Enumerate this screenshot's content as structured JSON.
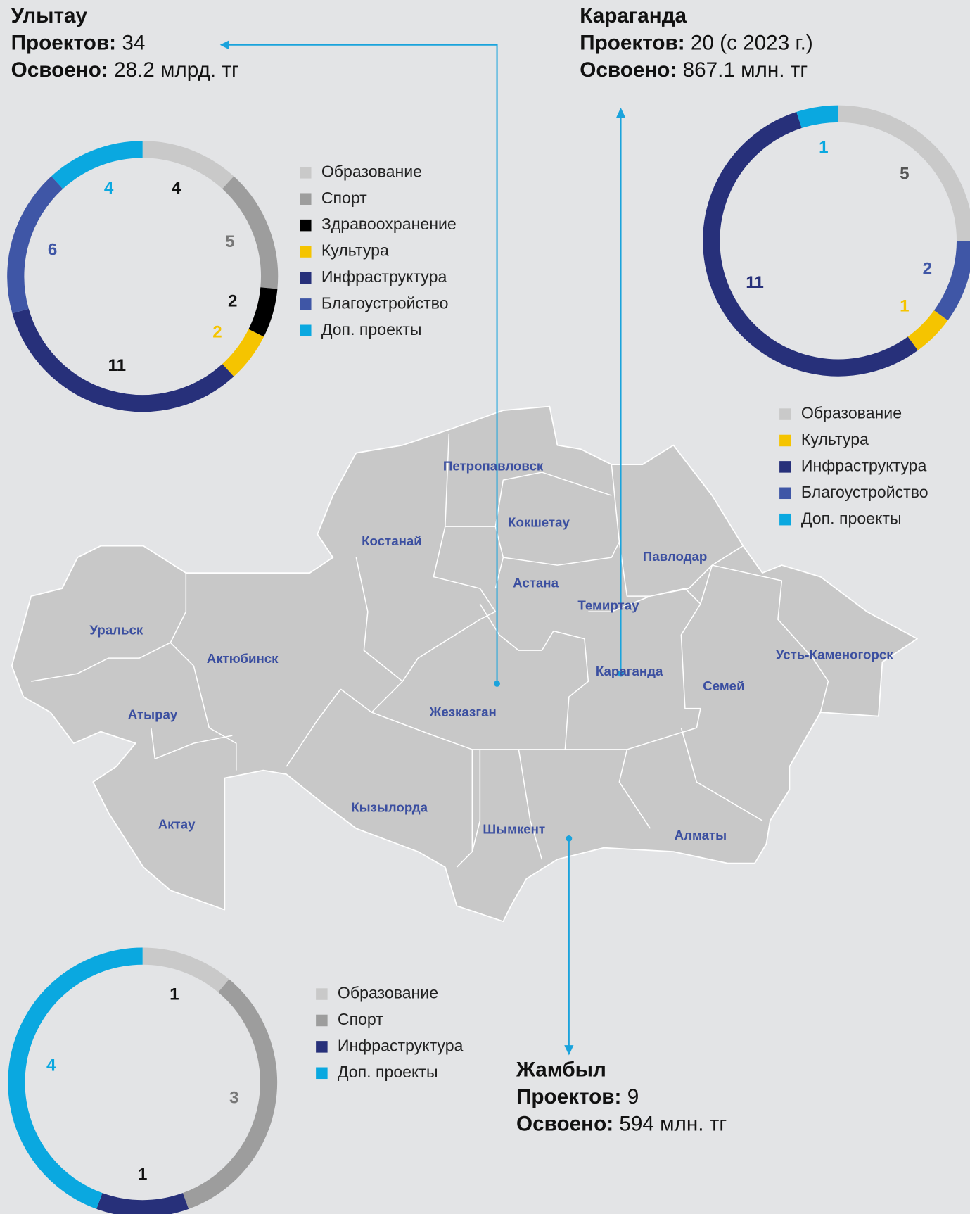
{
  "chart_data": [
    {
      "type": "donut",
      "title": "Улытау",
      "info": [
        {
          "label": "Проектов:",
          "value": "34"
        },
        {
          "label": "Освоено:",
          "value": "28.2 млрд. тг"
        }
      ],
      "categories": [
        "Образование",
        "Спорт",
        "Здравоохранение",
        "Культура",
        "Инфраструктура",
        "Благоустройство",
        "Доп. проекты"
      ],
      "values": [
        4,
        5,
        2,
        2,
        11,
        6,
        4
      ],
      "colors": [
        "#c9c9c9",
        "#9d9d9d",
        "#000000",
        "#f5c400",
        "#27307a",
        "#3f56a6",
        "#0aa8e0"
      ],
      "label_colors": [
        "#111111",
        "#777777",
        "#111111",
        "#f5c400",
        "#111111",
        "#3f56a6",
        "#0aa8e0"
      ]
    },
    {
      "type": "donut",
      "title": "Караганда",
      "info": [
        {
          "label": "Проектов:",
          "value": "20 (с 2023 г.)"
        },
        {
          "label": "Освоено:",
          "value": "867.1 млн. тг"
        }
      ],
      "categories": [
        "Образование",
        "Благоустройство",
        "Культура",
        "Инфраструктура",
        "Доп. проекты"
      ],
      "values": [
        5,
        2,
        1,
        11,
        1
      ],
      "colors": [
        "#c9c9c9",
        "#3f56a6",
        "#f5c400",
        "#27307a",
        "#0aa8e0"
      ],
      "label_colors": [
        "#555555",
        "#3f56a6",
        "#f5c400",
        "#27307a",
        "#0aa8e0"
      ],
      "legend_order": [
        0,
        2,
        3,
        1,
        4
      ]
    },
    {
      "type": "donut",
      "title": "Жамбыл",
      "info": [
        {
          "label": "Проектов:",
          "value": "9"
        },
        {
          "label": "Освоено:",
          "value": "594 млн. тг"
        }
      ],
      "categories": [
        "Образование",
        "Спорт",
        "Инфраструктура",
        "Доп. проекты"
      ],
      "values": [
        1,
        3,
        1,
        4
      ],
      "colors": [
        "#c9c9c9",
        "#9d9d9d",
        "#27307a",
        "#0aa8e0"
      ],
      "label_colors": [
        "#111111",
        "#777777",
        "#111111",
        "#0aa8e0"
      ]
    }
  ],
  "map": {
    "cities": [
      "Петропавловск",
      "Кокшетау",
      "Костанай",
      "Павлодар",
      "Астана",
      "Темиртау",
      "Уральск",
      "Актюбинск",
      "Усть-Каменогорск",
      "Караганда",
      "Семей",
      "Жезказган",
      "Атырау",
      "Кызылорда",
      "Шымкент",
      "Актау",
      "Алматы"
    ]
  }
}
